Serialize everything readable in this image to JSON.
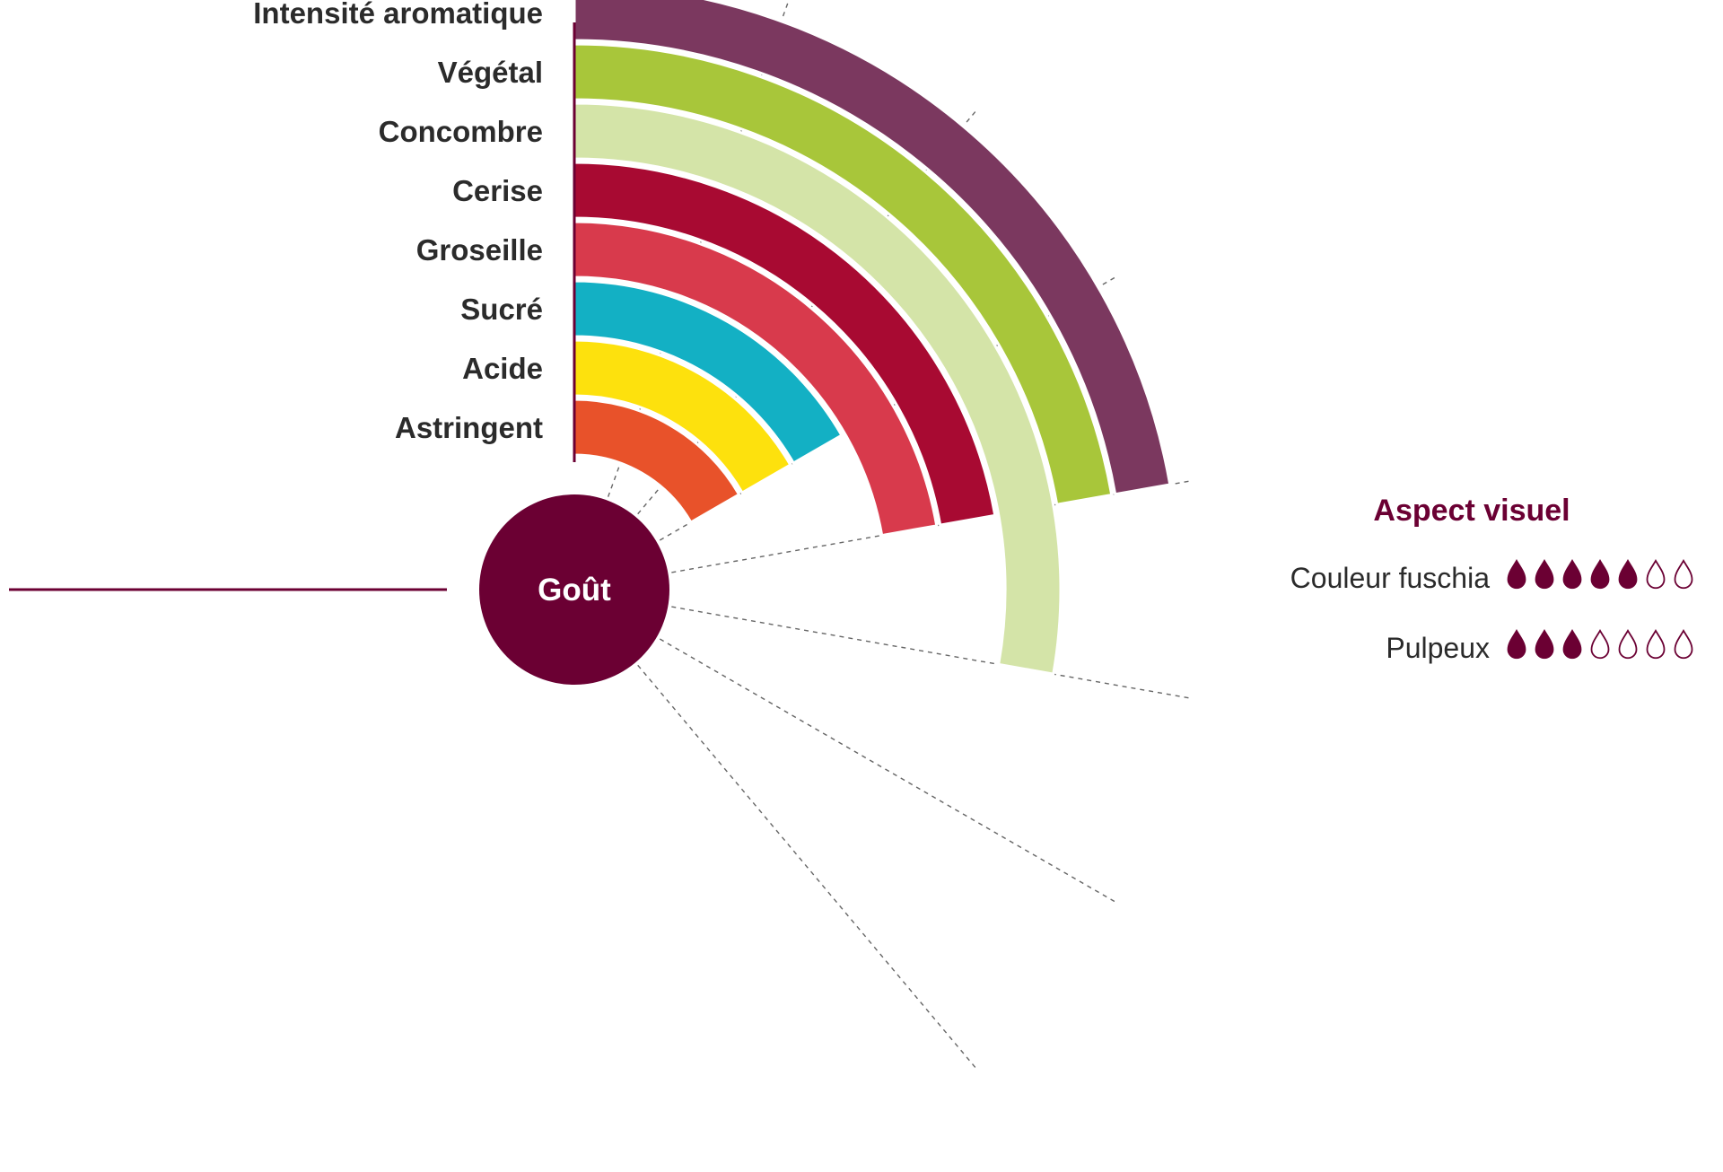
{
  "chart_data": {
    "type": "radial-bar",
    "center_label": "Goût",
    "scale_max": 7,
    "series": [
      {
        "label": "Astringent",
        "value": 3,
        "color": "#e8522a"
      },
      {
        "label": "Acide",
        "value": 3,
        "color": "#fde10d"
      },
      {
        "label": "Sucré",
        "value": 3,
        "color": "#13b0c4"
      },
      {
        "label": "Groseille",
        "value": 4,
        "color": "#d83a4c"
      },
      {
        "label": "Cerise",
        "value": 4,
        "color": "#a80a32"
      },
      {
        "label": "Concombre",
        "value": 5,
        "color": "#d4e4a8"
      },
      {
        "label": "Végétal",
        "value": 4,
        "color": "#a8c63a"
      },
      {
        "label": "Intensité aromatique",
        "value": 4,
        "color": "#7b385f"
      }
    ]
  },
  "aspect_visuel": {
    "title": "Aspect visuel",
    "max_drops": 7,
    "items": [
      {
        "label": "Couleur fuschia",
        "value": 5
      },
      {
        "label": "Pulpeux",
        "value": 3
      }
    ]
  },
  "colors": {
    "accent": "#6b0033",
    "divider": "#6b0033",
    "guide": "#666666"
  }
}
